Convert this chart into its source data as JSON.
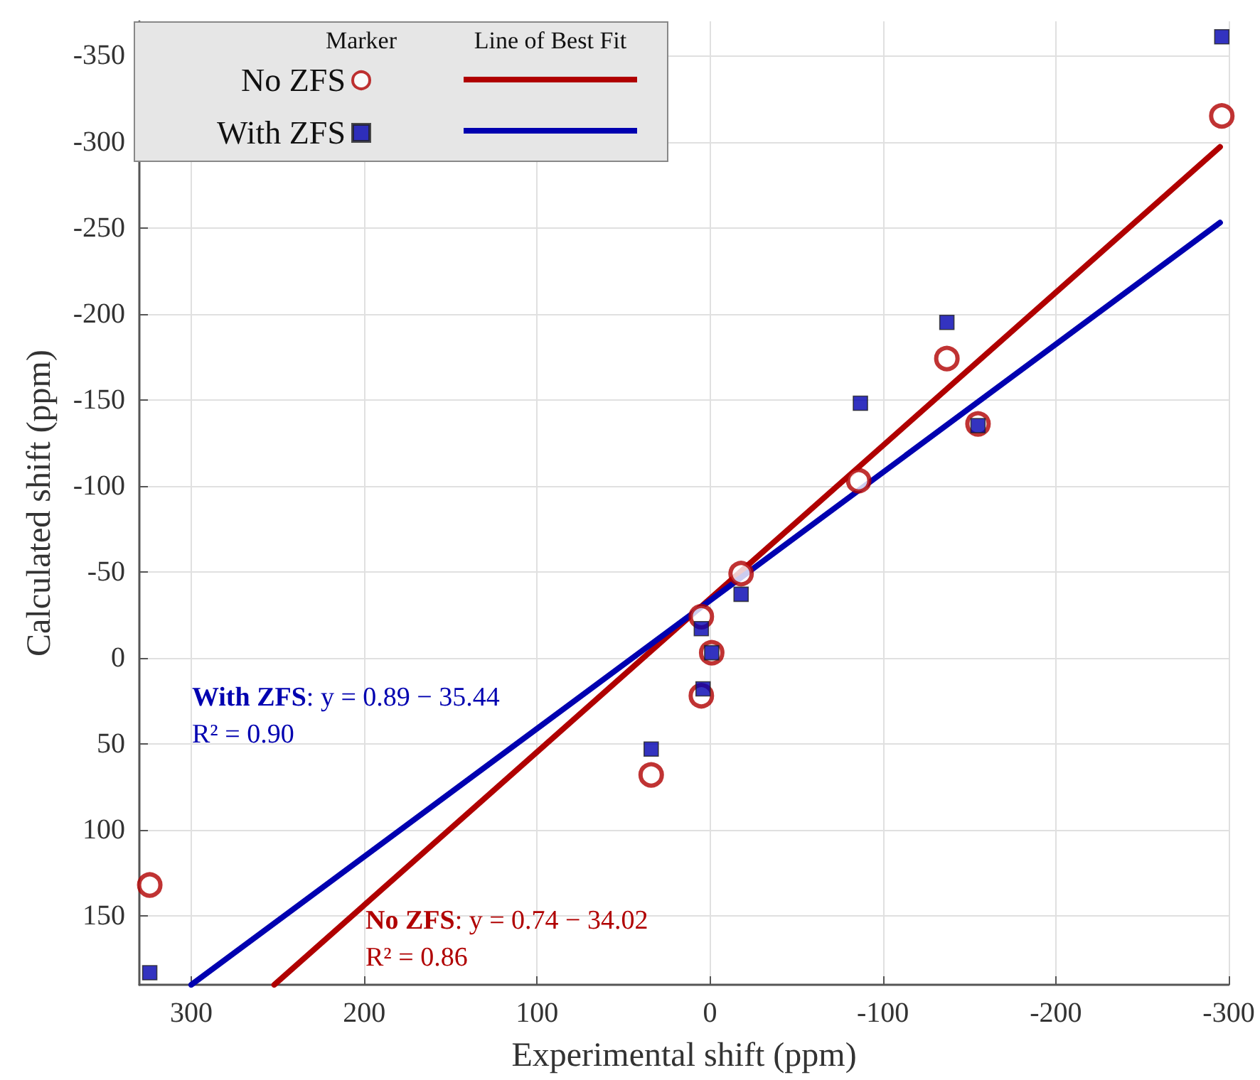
{
  "chart_data": {
    "type": "scatter",
    "xlabel": "Experimental shift (ppm)",
    "ylabel": "Calculated shift (ppm)",
    "xlim": [
      330,
      -300
    ],
    "xticks": [
      300,
      200,
      100,
      0,
      -100,
      -200,
      -300
    ],
    "ylim": [
      190,
      -370
    ],
    "yticks": [
      -350,
      -300,
      -250,
      -200,
      -150,
      -100,
      -50,
      0,
      50,
      100,
      150
    ],
    "grid": true,
    "legend": "top left",
    "series": [
      {
        "name": "No ZFS",
        "type": "scatter",
        "marker": "circle",
        "color": "#b00000",
        "x": [
          324,
          34,
          5,
          -1,
          5,
          -18,
          -137,
          -155,
          -86,
          -296
        ],
        "values": [
          132,
          68,
          -24,
          -3,
          22,
          -49,
          -174,
          -136,
          -103,
          -315
        ]
      },
      {
        "name": "With ZFS",
        "type": "scatter",
        "marker": "square",
        "color": "#0000b0",
        "x": [
          324,
          34,
          5,
          -1,
          4,
          -18,
          -137,
          -155,
          -87,
          -296
        ],
        "values": [
          183,
          53,
          -17,
          -3,
          18,
          -37,
          -195,
          -135,
          -148,
          -361
        ]
      },
      {
        "type": "line",
        "color": "#b00000",
        "x": [
          252,
          -295
        ],
        "values": [
          190,
          -297
        ]
      },
      {
        "type": "line",
        "color": "#0000b0",
        "x": [
          300,
          -295
        ],
        "values": [
          190,
          -253
        ]
      }
    ],
    "annotations": [
      "Marker",
      "Line of Best Fit",
      "No ZFS: y = 0.74 − 34.02\nR² = 0.86",
      "With ZFS: y = 0.89 − 35.44\nR² = 0.90"
    ]
  }
}
